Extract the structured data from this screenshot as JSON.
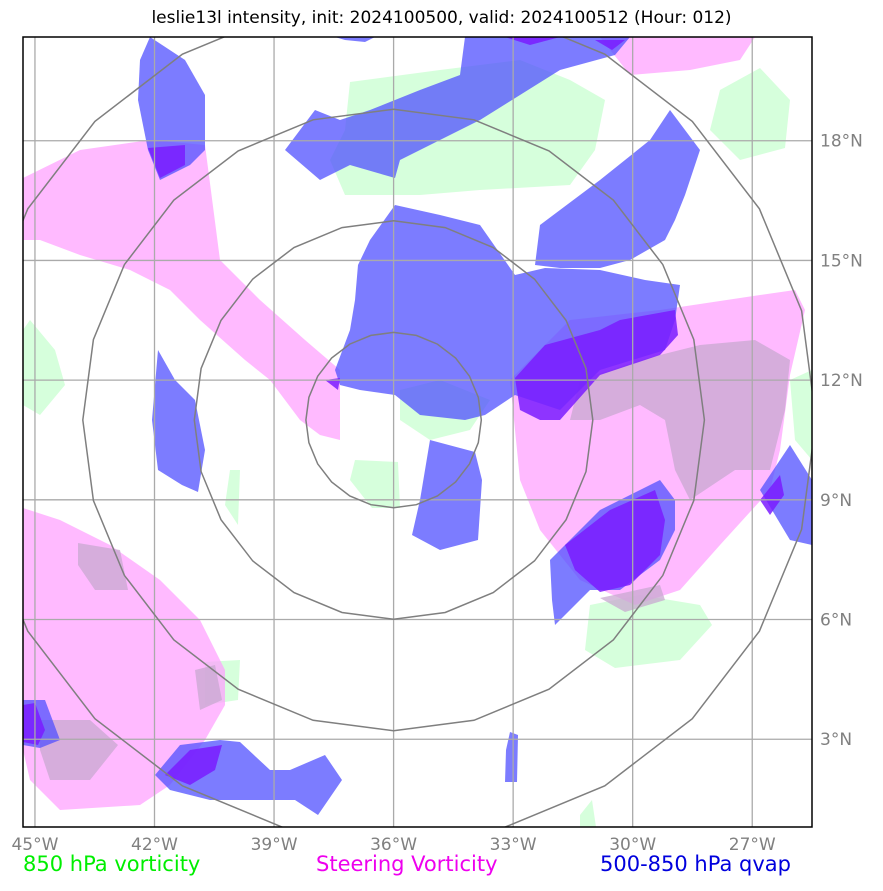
{
  "title": "leslie13l intensity, init: 2024100500, valid: 2024100512 (Hour: 012)",
  "map": {
    "lon_range": [
      -45.3,
      -25.5
    ],
    "lat_range": [
      0.8,
      20.6
    ],
    "lon_ticks": [
      {
        "value": -45,
        "label": "45°W"
      },
      {
        "value": -42,
        "label": "42°W"
      },
      {
        "value": -39,
        "label": "39°W"
      },
      {
        "value": -36,
        "label": "36°W"
      },
      {
        "value": -33,
        "label": "33°W"
      },
      {
        "value": -30,
        "label": "30°W"
      },
      {
        "value": -27,
        "label": "27°W"
      }
    ],
    "lat_ticks": [
      {
        "value": 3,
        "label": "3°N"
      },
      {
        "value": 6,
        "label": "6°N"
      },
      {
        "value": 9,
        "label": "9°N"
      },
      {
        "value": 12,
        "label": "12°N"
      },
      {
        "value": 15,
        "label": "15°N"
      },
      {
        "value": 18,
        "label": "18°N"
      }
    ],
    "range_rings": {
      "center_lon": -36.0,
      "center_lat": 11.0,
      "radii_deg": [
        2.2,
        5.0,
        7.8,
        10.6
      ]
    },
    "colors": {
      "vort850": "#c8ffd0",
      "steering": "#ff9cff",
      "qvap": "#5050ff",
      "overlap": "#7a1cff",
      "ring": "#7f7f7f",
      "grid": "#aaaaaa",
      "tick_label": "#808080"
    }
  },
  "legend": {
    "vort850": {
      "label": "850 hPa vorticity",
      "color": "#00ee00"
    },
    "steering": {
      "label": "Steering Vorticity",
      "color": "#ee00ee"
    },
    "qvap": {
      "label": "500-850 hPa qvap",
      "color": "#0000dd"
    }
  }
}
